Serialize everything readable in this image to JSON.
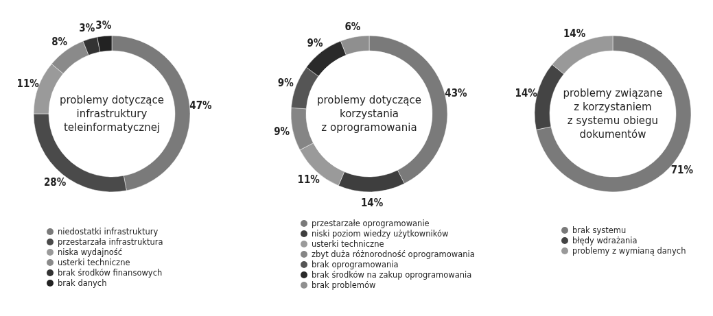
{
  "chart_data": [
    {
      "type": "donut",
      "title": "problemy dotyczące\ninfrastruktury\nteleinformatycznej",
      "categories": [
        "niedostatki infrastruktury",
        "przestarzała infrastruktura",
        "niska wydajność",
        "usterki techniczne",
        "brak środków finansowych",
        "brak danych"
      ],
      "values": [
        47,
        28,
        11,
        8,
        3,
        3
      ],
      "colors": [
        "#7a7a7a",
        "#4a4a4a",
        "#9a9a9a",
        "#8a8a8a",
        "#333333",
        "#222222"
      ],
      "value_labels": [
        "47%",
        "28%",
        "11%",
        "8%",
        "3%",
        "3%"
      ],
      "legend": "bottom"
    },
    {
      "type": "donut",
      "title": "problemy dotyczące\nkorzystania\nz oprogramowania",
      "categories": [
        "przestarzałe oprogramowanie",
        "niski poziom wiedzy użytkowników",
        "usterki techniczne",
        "zbyt duża różnorodność oprogramowania",
        "brak oprogramowania",
        "brak środków na zakup oprogramowania",
        "brak problemów"
      ],
      "values": [
        43,
        14,
        11,
        9,
        9,
        9,
        6
      ],
      "colors": [
        "#7a7a7a",
        "#3e3e3e",
        "#9a9a9a",
        "#858585",
        "#555555",
        "#2a2a2a",
        "#8f8f8f"
      ],
      "value_labels": [
        "43%",
        "14%",
        "11%",
        "9%",
        "9%",
        "9%",
        "6%"
      ],
      "legend": "bottom"
    },
    {
      "type": "donut",
      "title": "problemy związane\nz korzystaniem\nz systemu obiegu\ndokumentów",
      "categories": [
        "brak systemu",
        "błędy wdrażania",
        "problemy z wymianą danych"
      ],
      "values": [
        71,
        14,
        14
      ],
      "colors": [
        "#7a7a7a",
        "#444444",
        "#999999"
      ],
      "value_labels": [
        "71%",
        "14%",
        "14%"
      ],
      "legend": "bottom"
    }
  ]
}
